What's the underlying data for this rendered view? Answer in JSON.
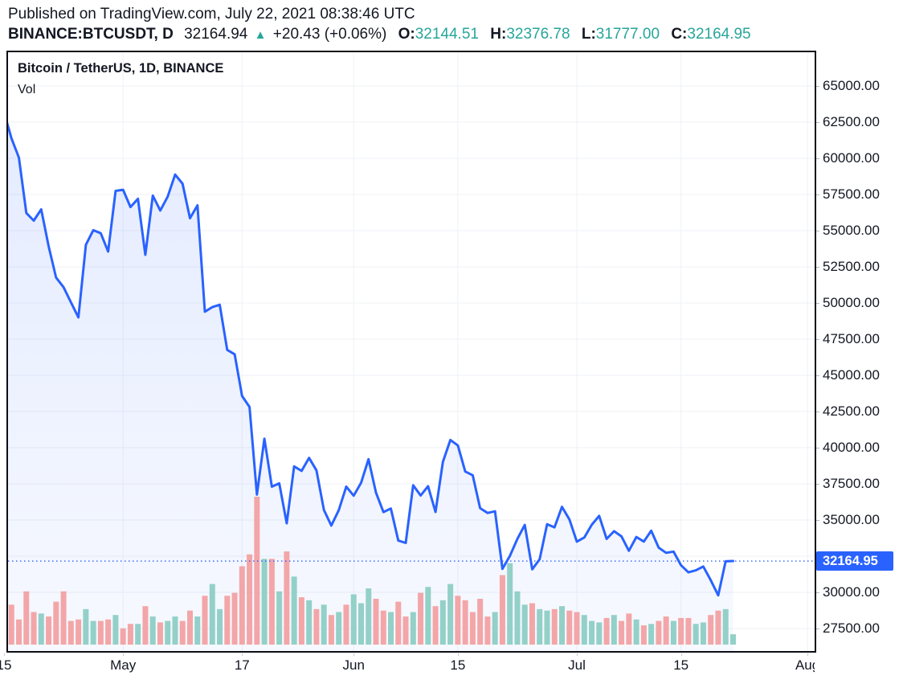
{
  "header": {
    "published": "Published on TradingView.com, July 22, 2021 08:38:46 UTC",
    "symbol": "BINANCE:BTCUSDT, D",
    "last_price": "32164.94",
    "direction": "up",
    "up_triangle_icon": "▲",
    "change": "+20.43 (+0.06%)",
    "ohlc": [
      {
        "label": "O:",
        "value": "32144.51"
      },
      {
        "label": "H:",
        "value": "32376.78"
      },
      {
        "label": "L:",
        "value": "31777.00"
      },
      {
        "label": "C:",
        "value": "32164.95"
      }
    ]
  },
  "chart": {
    "title": "Bitcoin / TetherUS, 1D, BINANCE",
    "indicator": "Vol",
    "price_label": "32164.95"
  },
  "colors": {
    "line": "#2962ff",
    "area_top": "rgba(41,98,255,0.13)",
    "area_bottom": "rgba(41,98,255,0.04)",
    "price_line": "#2962ff",
    "price_label_bg": "#2962ff",
    "teal_text": "#26a69a",
    "text_dark": "#131722",
    "grid": "#eff1f4",
    "vol_up": "#93d0c8",
    "vol_down": "#f3a6a8",
    "axis_tick": "#b2b5be"
  },
  "chart_data": {
    "type": "area",
    "title": "Bitcoin / TetherUS, 1D, BINANCE",
    "symbol": "BTCUSDT",
    "exchange": "BINANCE",
    "interval": "1D",
    "start_date": "2021-04-15",
    "end_date": "2021-07-22",
    "last_price": 32164.95,
    "price_line": 32164.95,
    "ylim": [
      26700,
      66900
    ],
    "y_ticks": [
      65000,
      62500,
      60000,
      57500,
      55000,
      52500,
      50000,
      47500,
      45000,
      42500,
      40000,
      37500,
      35000,
      32500,
      30000,
      27500
    ],
    "y_ticks_hidden_by_price_label": [
      32500
    ],
    "x_ticks": [
      {
        "label": "15",
        "day_index": 0
      },
      {
        "label": "May",
        "day_index": 16
      },
      {
        "label": "17",
        "day_index": 32
      },
      {
        "label": "Jun",
        "day_index": 47
      },
      {
        "label": "15",
        "day_index": 61
      },
      {
        "label": "Jul",
        "day_index": 77
      },
      {
        "label": "15",
        "day_index": 91
      },
      {
        "label": "Aug",
        "day_index": 108
      }
    ],
    "close": [
      63179,
      61379,
      60058,
      56216,
      55696,
      56473,
      53906,
      51762,
      51093,
      50052,
      49004,
      54021,
      55033,
      54824,
      53555,
      57750,
      57828,
      56631,
      57200,
      53333,
      57424,
      56396,
      57352,
      58877,
      58250,
      55859,
      56750,
      49400,
      49716,
      49880,
      46760,
      46456,
      43580,
      42810,
      36753,
      40623,
      37304,
      37536,
      34770,
      38705,
      38392,
      39294,
      38436,
      35697,
      34616,
      35684,
      37310,
      36684,
      37575,
      39208,
      36894,
      35551,
      35796,
      33575,
      33416,
      37406,
      36693,
      37338,
      35557,
      39020,
      40531,
      40158,
      38349,
      38093,
      35820,
      35491,
      35600,
      31622,
      32520,
      33684,
      34663,
      31594,
      32282,
      34709,
      34494,
      35910,
      35041,
      33507,
      33796,
      34669,
      35288,
      33694,
      34227,
      33866,
      32875,
      33825,
      33510,
      34259,
      33090,
      32732,
      32815,
      31875,
      31385,
      31523,
      31790,
      30840,
      29792,
      32144,
      32165
    ],
    "volume_rel": [
      22,
      27,
      17,
      36,
      22,
      21,
      19,
      29,
      36,
      16,
      17,
      24,
      16,
      16,
      17,
      20,
      11,
      14,
      14,
      26,
      19,
      15,
      16,
      19,
      16,
      23,
      19,
      33,
      41,
      24,
      33,
      35,
      53,
      61,
      100,
      58,
      58,
      36,
      63,
      46,
      32,
      30,
      24,
      27,
      20,
      22,
      27,
      34,
      28,
      38,
      31,
      23,
      22,
      29,
      19,
      22,
      35,
      39,
      26,
      30,
      41,
      33,
      30,
      22,
      31,
      19,
      22,
      47,
      55,
      36,
      27,
      28,
      24,
      23,
      24,
      26,
      23,
      22,
      20,
      16,
      15,
      18,
      20,
      16,
      21,
      17,
      13,
      14,
      16,
      19,
      16,
      18,
      18,
      14,
      15,
      20,
      23,
      24,
      7
    ],
    "volume_dir": [
      "d",
      "d",
      "d",
      "d",
      "d",
      "u",
      "d",
      "d",
      "d",
      "d",
      "d",
      "u",
      "u",
      "d",
      "d",
      "u",
      "d",
      "d",
      "u",
      "d",
      "u",
      "d",
      "u",
      "u",
      "d",
      "d",
      "u",
      "d",
      "u",
      "u",
      "d",
      "d",
      "d",
      "d",
      "d",
      "u",
      "d",
      "u",
      "d",
      "u",
      "d",
      "u",
      "d",
      "u",
      "d",
      "u",
      "d",
      "u",
      "u",
      "u",
      "d",
      "d",
      "u",
      "d",
      "d",
      "u",
      "d",
      "u",
      "d",
      "u",
      "u",
      "d",
      "d",
      "d",
      "d",
      "d",
      "u",
      "d",
      "u",
      "u",
      "u",
      "d",
      "u",
      "u",
      "d",
      "u",
      "d",
      "d",
      "u",
      "u",
      "u",
      "d",
      "u",
      "d",
      "d",
      "u",
      "d",
      "u",
      "d",
      "d",
      "u",
      "d",
      "d",
      "u",
      "u",
      "d",
      "d",
      "u",
      "u"
    ],
    "legend": [],
    "grid": "on",
    "xlabel": "",
    "ylabel": ""
  }
}
